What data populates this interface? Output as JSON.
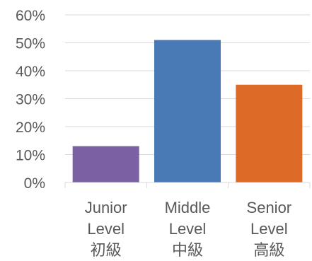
{
  "chart_data": {
    "type": "bar",
    "categories": [
      [
        "Junior",
        "Level",
        "初級"
      ],
      [
        "Middle",
        "Level",
        "中級"
      ],
      [
        "Senior",
        "Level",
        "高級"
      ]
    ],
    "values": [
      13,
      51,
      35
    ],
    "colors": [
      "#7b60a3",
      "#4a7ab5",
      "#dd6b27"
    ],
    "ylim": [
      0,
      60
    ],
    "yticks": [
      "0%",
      "10%",
      "20%",
      "30%",
      "40%",
      "50%",
      "60%"
    ],
    "grid": true,
    "legend": false
  }
}
